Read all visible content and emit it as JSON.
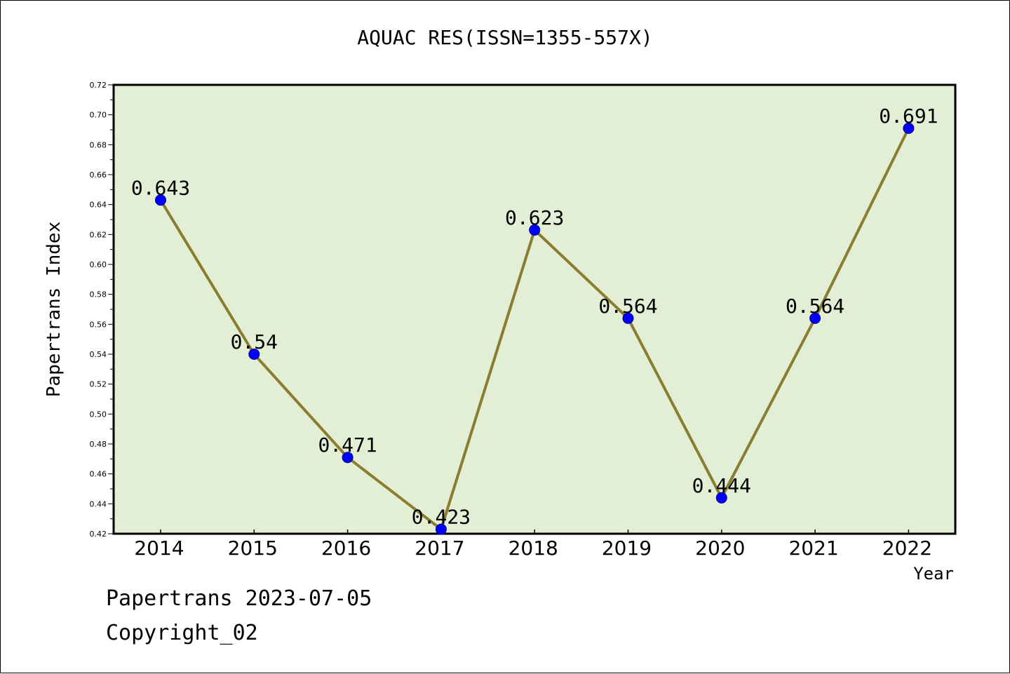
{
  "footer": {
    "line1": "Papertrans 2023-07-05",
    "line2": "Copyright_02"
  },
  "colors": {
    "plot_background": "#e2efd5",
    "line": "#8b7d2f",
    "marker": "#0000ff"
  },
  "chart_data": {
    "type": "line",
    "title": "AQUAC RES(ISSN=1355-557X)",
    "xlabel": "Year",
    "ylabel": "Papertrans Index",
    "categories": [
      "2014",
      "2015",
      "2016",
      "2017",
      "2018",
      "2019",
      "2020",
      "2021",
      "2022"
    ],
    "series": [
      {
        "values": [
          0.643,
          0.54,
          0.471,
          0.423,
          0.623,
          0.564,
          0.444,
          0.564,
          0.691
        ],
        "labels": [
          "0.643",
          "0.54",
          "0.471",
          "0.423",
          "0.623",
          "0.564",
          "0.444",
          "0.564",
          "0.691"
        ]
      }
    ],
    "ylim": [
      0.42,
      0.72
    ],
    "yticks": [
      "0.42",
      "0.44",
      "0.46",
      "0.48",
      "0.50",
      "0.52",
      "0.54",
      "0.56",
      "0.58",
      "0.60",
      "0.62",
      "0.64",
      "0.66",
      "0.68",
      "0.70",
      "0.72"
    ],
    "grid": false,
    "legend": "none"
  }
}
